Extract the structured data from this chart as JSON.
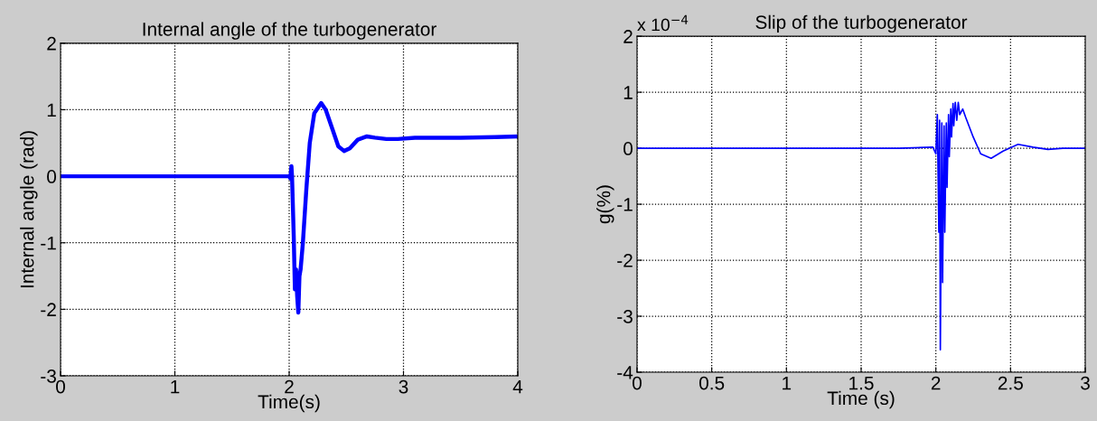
{
  "chart_data": [
    {
      "type": "line",
      "title": "Internal angle of the turbogenerator",
      "xlabel": "Time(s)",
      "ylabel": "Internal angle (rad)",
      "xlim": [
        0,
        4
      ],
      "ylim": [
        -3,
        2
      ],
      "xticks": [
        0,
        1,
        2,
        3,
        4
      ],
      "yticks": [
        -3,
        -2,
        -1,
        0,
        1,
        2
      ],
      "grid": true,
      "line_style": "solid",
      "series": [
        {
          "color": "#0000ff",
          "x": [
            0,
            2.0,
            2.01,
            2.02,
            2.025,
            2.04,
            2.05,
            2.06,
            2.07,
            2.08,
            2.09,
            2.1,
            2.12,
            2.15,
            2.18,
            2.22,
            2.28,
            2.32,
            2.38,
            2.43,
            2.48,
            2.53,
            2.6,
            2.68,
            2.75,
            2.85,
            2.95,
            3.1,
            3.5,
            3.8,
            4.0
          ],
          "values": [
            0,
            0,
            -0.03,
            0.15,
            0,
            -0.9,
            -1.7,
            -1.4,
            -1.8,
            -2.05,
            -1.5,
            -1.4,
            -1.0,
            -0.2,
            0.5,
            0.95,
            1.1,
            1.0,
            0.7,
            0.45,
            0.38,
            0.42,
            0.55,
            0.6,
            0.58,
            0.56,
            0.56,
            0.58,
            0.58,
            0.59,
            0.6
          ]
        }
      ]
    },
    {
      "type": "line",
      "title": "Slip of the turbogenerator",
      "xlabel": "Time (s)",
      "ylabel": "g(%)",
      "annotations": [
        "x 10$^{−4}$"
      ],
      "xlim": [
        0,
        3
      ],
      "ylim": [
        -4,
        2
      ],
      "xticks": [
        0,
        0.5,
        1,
        1.5,
        2,
        2.5,
        3
      ],
      "yticks": [
        -4,
        -3,
        -2,
        -1,
        0,
        1,
        2
      ],
      "grid": true,
      "line_style": "solid",
      "series": [
        {
          "color": "#0000ff",
          "x": [
            0,
            1.75,
            1.98,
            2.0,
            2.01,
            2.02,
            2.025,
            2.03,
            2.04,
            2.045,
            2.055,
            2.06,
            2.07,
            2.075,
            2.085,
            2.09,
            2.1,
            2.105,
            2.115,
            2.12,
            2.13,
            2.14,
            2.15,
            2.16,
            2.18,
            2.2,
            2.25,
            2.3,
            2.37,
            2.45,
            2.55,
            2.65,
            2.75,
            2.85,
            3.0
          ],
          "values": [
            0,
            0,
            0.02,
            -0.1,
            0.6,
            -1.5,
            0.5,
            -3.6,
            0.45,
            -2.4,
            0.4,
            -1.5,
            0.45,
            -0.7,
            0.6,
            -0.15,
            0.7,
            0.2,
            0.8,
            0.4,
            0.82,
            0.5,
            0.82,
            0.6,
            0.7,
            0.55,
            0.2,
            -0.1,
            -0.18,
            -0.05,
            0.07,
            0.02,
            -0.02,
            0.0,
            0.0
          ]
        }
      ]
    }
  ]
}
